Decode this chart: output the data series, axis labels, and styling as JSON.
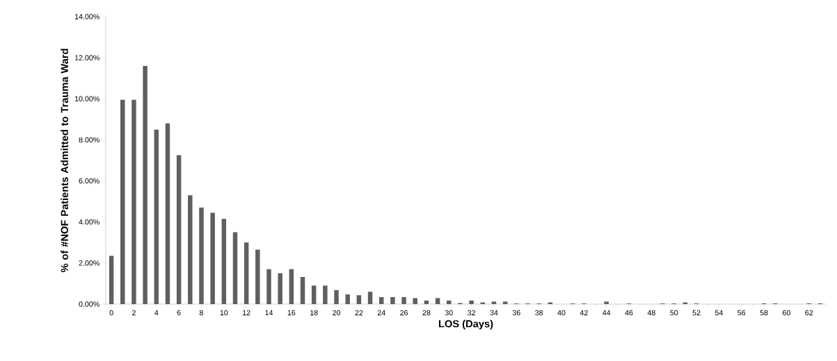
{
  "chart_data": {
    "type": "bar",
    "xlabel": "LOS (Days)",
    "ylabel": "% of #NOF Patients Admitted to Trauma Ward",
    "categories": [
      "0",
      null,
      "2",
      null,
      "4",
      null,
      "6",
      null,
      "8",
      null,
      "10",
      null,
      "12",
      null,
      "14",
      null,
      "16",
      null,
      "18",
      null,
      "20",
      null,
      "22",
      null,
      "24",
      null,
      "26",
      null,
      "28",
      null,
      "30",
      null,
      "32",
      null,
      "34",
      null,
      "36",
      null,
      "38",
      null,
      "40",
      null,
      "42",
      null,
      "44",
      null,
      "46",
      null,
      "48",
      null,
      "50",
      null,
      "52",
      null,
      "54",
      null,
      "56",
      null,
      "58",
      null,
      "60",
      null,
      "62",
      null
    ],
    "values": [
      2.35,
      9.95,
      9.95,
      11.6,
      8.5,
      8.8,
      7.25,
      5.3,
      4.7,
      4.45,
      4.15,
      3.5,
      3.0,
      2.65,
      1.7,
      1.5,
      1.7,
      1.32,
      0.9,
      0.9,
      0.68,
      0.47,
      0.43,
      0.6,
      0.34,
      0.34,
      0.34,
      0.29,
      0.17,
      0.29,
      0.17,
      0.05,
      0.17,
      0.08,
      0.12,
      0.12,
      0.03,
      0.03,
      0.03,
      0.08,
      0,
      0.03,
      0.03,
      0,
      0.12,
      0,
      0.03,
      0,
      0,
      0.03,
      0.03,
      0.08,
      0.03,
      0,
      0,
      0,
      0,
      0,
      0.03,
      0.03,
      0,
      0,
      0.03,
      0.03
    ],
    "color": "#5f5f5f",
    "ylim": [
      0,
      14
    ],
    "yticks": [
      {
        "value": 0,
        "label": "0.00%"
      },
      {
        "value": 2,
        "label": "2.00%"
      },
      {
        "value": 4,
        "label": "4.00%"
      },
      {
        "value": 6,
        "label": "6.00%"
      },
      {
        "value": 8,
        "label": "8.00%"
      },
      {
        "value": 10,
        "label": "10.00%"
      },
      {
        "value": 12,
        "label": "12.00%"
      },
      {
        "value": 14,
        "label": "14.00%"
      }
    ],
    "grid": false
  }
}
